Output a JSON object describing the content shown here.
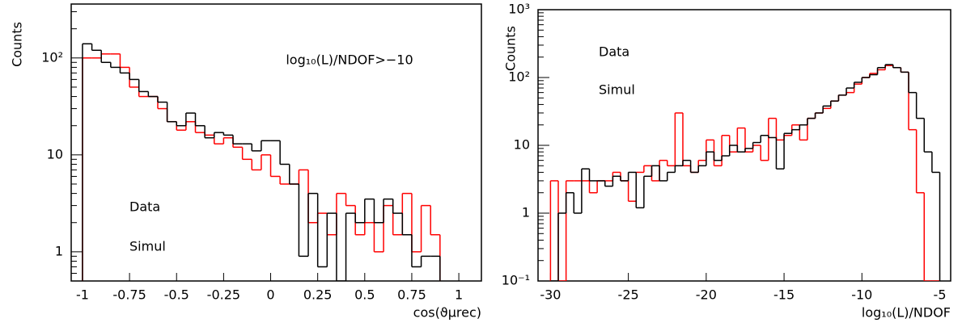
{
  "chart_data": [
    {
      "type": "histogram",
      "log_y": true,
      "annotation": "log₁₀(L)/NDOF>−10",
      "x_label": "cos(ϑμrec)",
      "y_label": "Counts",
      "xlim": [
        -1.06,
        1.12
      ],
      "ylim": [
        0.5,
        360
      ],
      "xticks": [
        -1,
        -0.75,
        -0.5,
        -0.25,
        0,
        0.25,
        0.5,
        0.75,
        1
      ],
      "yticks": [
        1,
        10,
        {
          "value": 100,
          "label": "10²"
        }
      ],
      "bins": [
        -1,
        -0.95,
        -0.9,
        -0.85,
        -0.8,
        -0.75,
        -0.7,
        -0.65,
        -0.6,
        -0.55,
        -0.5,
        -0.45,
        -0.4,
        -0.35,
        -0.3,
        -0.25,
        -0.2,
        -0.15,
        -0.1,
        -0.05,
        0,
        0.05,
        0.1,
        0.15,
        0.2,
        0.25,
        0.3,
        0.35,
        0.4,
        0.45,
        0.5,
        0.55,
        0.6,
        0.65,
        0.7,
        0.75,
        0.8,
        0.85,
        0.9
      ],
      "series": [
        {
          "name": "Data",
          "color": "#ff0000",
          "values": [
            100,
            100,
            110,
            110,
            80,
            50,
            40,
            40,
            30,
            22,
            18,
            22,
            17,
            16,
            13,
            15,
            12,
            9,
            7,
            10,
            6,
            5,
            5,
            7,
            2,
            2.5,
            1.5,
            4,
            3,
            1.5,
            2,
            1,
            3,
            1.5,
            4,
            1,
            3,
            1.5
          ]
        },
        {
          "name": "Simul",
          "color": "#000000",
          "values": [
            140,
            120,
            90,
            80,
            70,
            60,
            45,
            40,
            35,
            22,
            20,
            27,
            20,
            15,
            17,
            16,
            13,
            13,
            11,
            14,
            14,
            8,
            5,
            0.9,
            4,
            0.7,
            2.5,
            0,
            2.5,
            2,
            3.5,
            2,
            3.5,
            2.5,
            1.5,
            0.7,
            0.9,
            0.9
          ]
        }
      ]
    },
    {
      "type": "histogram",
      "log_y": true,
      "x_label": "log₁₀(L)/NDOF",
      "y_label": "Counts",
      "xlim": [
        -30.8,
        -4.3
      ],
      "ylim": [
        0.1,
        1000
      ],
      "xticks": [
        -30,
        -25,
        -20,
        -15,
        -10,
        -5
      ],
      "yticks": [
        {
          "value": 0.1,
          "label": "10⁻¹"
        },
        1,
        10,
        {
          "value": 100,
          "label": "10²"
        },
        {
          "value": 1000,
          "label": "10³"
        }
      ],
      "bins": [
        -30,
        -29.5,
        -29,
        -28.5,
        -28,
        -27.5,
        -27,
        -26.5,
        -26,
        -25.5,
        -25,
        -24.5,
        -24,
        -23.5,
        -23,
        -22.5,
        -22,
        -21.5,
        -21,
        -20.5,
        -20,
        -19.5,
        -19,
        -18.5,
        -18,
        -17.5,
        -17,
        -16.5,
        -16,
        -15.5,
        -15,
        -14.5,
        -14,
        -13.5,
        -13,
        -12.5,
        -12,
        -11.5,
        -11,
        -10.5,
        -10,
        -9.5,
        -9,
        -8.5,
        -8,
        -7.5,
        -7,
        -6.5,
        -6,
        -5.5,
        -5
      ],
      "series": [
        {
          "name": "Data",
          "color": "#ff0000",
          "values": [
            3,
            0,
            3,
            3,
            3,
            2,
            3,
            3,
            4,
            3,
            1.5,
            4,
            5,
            3,
            6,
            5,
            30,
            5,
            4,
            6,
            12,
            5,
            14,
            8,
            18,
            8,
            10,
            6,
            25,
            12,
            14,
            20,
            12,
            25,
            30,
            35,
            45,
            55,
            60,
            80,
            100,
            115,
            130,
            150,
            140,
            120,
            17,
            2,
            0,
            0
          ]
        },
        {
          "name": "Simul",
          "color": "#000000",
          "values": [
            0,
            1,
            2,
            1,
            4.5,
            3,
            3,
            2.5,
            3.5,
            3,
            4,
            1.2,
            3.5,
            5,
            3,
            4,
            5,
            6,
            4,
            5,
            8,
            6,
            7,
            10,
            8,
            9,
            11,
            14,
            13,
            4.5,
            15,
            17,
            20,
            25,
            30,
            38,
            45,
            55,
            70,
            85,
            100,
            110,
            140,
            155,
            140,
            120,
            60,
            25,
            8,
            4
          ]
        }
      ]
    }
  ]
}
